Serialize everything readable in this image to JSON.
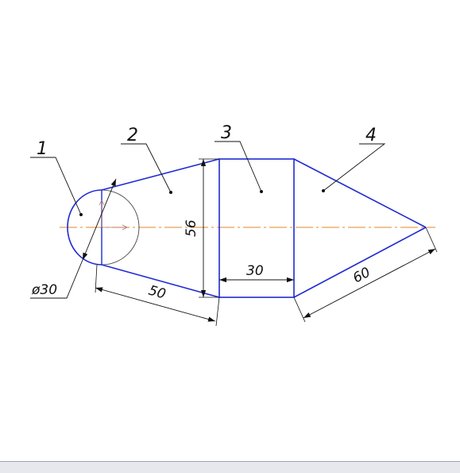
{
  "drawing": {
    "callouts": [
      "1",
      "2",
      "3",
      "4"
    ],
    "dimensions": {
      "diameter": "ø30",
      "height": "56",
      "slant_left": "50",
      "width_mid": "30",
      "slant_right": "60"
    },
    "colors": {
      "outline": "#1f2bd1",
      "centerline": "#e08a2a",
      "dimension": "#111111",
      "origin_marker": "#b07070"
    }
  }
}
